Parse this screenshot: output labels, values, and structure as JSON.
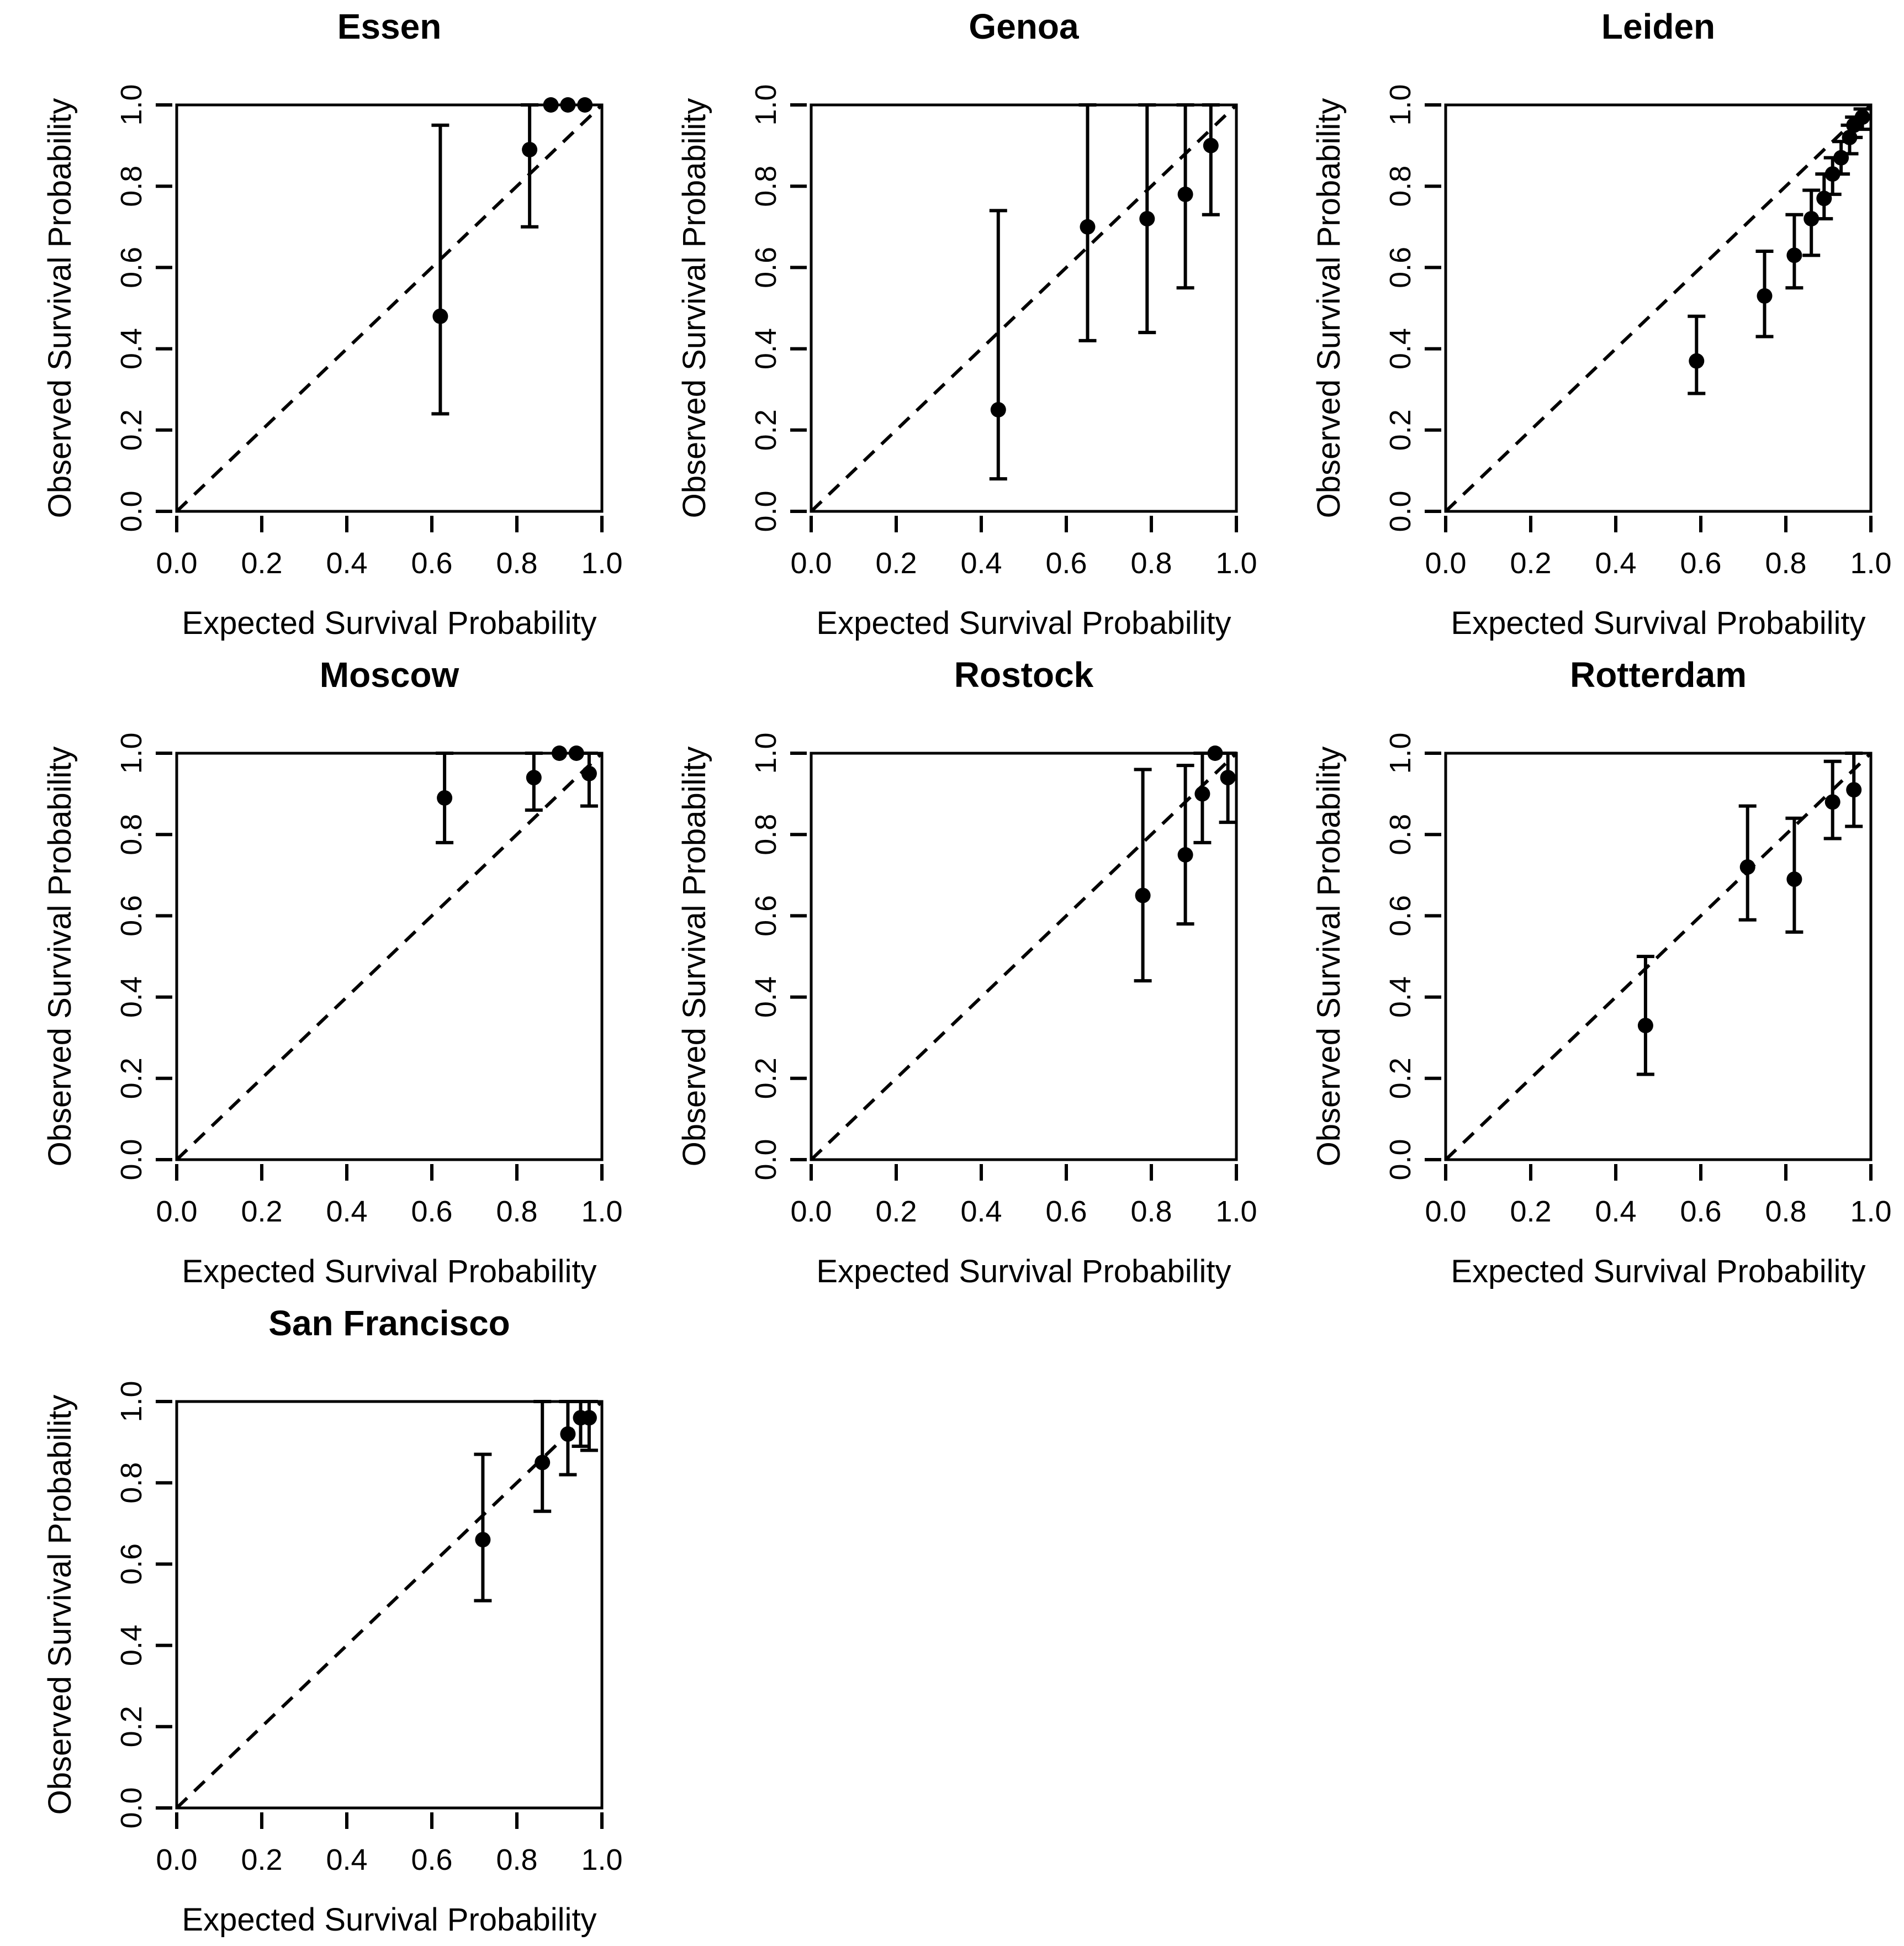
{
  "figure": {
    "xlabel": "Expected Survival Probability",
    "ylabel": "Observed Survival Probability",
    "description": "Calibration plots of expected vs observed survival probability per city cohort"
  },
  "axis": {
    "tick_labels": [
      "0.0",
      "0.2",
      "0.4",
      "0.6",
      "0.8",
      "1.0"
    ],
    "tick_values": [
      0,
      0.2,
      0.4,
      0.6,
      0.8,
      1.0
    ],
    "xlim": [
      0,
      1
    ],
    "ylim": [
      0,
      1
    ]
  },
  "colors": {
    "foreground": "#000000",
    "background": "#ffffff"
  },
  "chart_data": [
    {
      "type": "scatter",
      "title": "Essen",
      "xlabel": "Expected Survival Probability",
      "ylabel": "Observed Survival Probability",
      "xlim": [
        0,
        1
      ],
      "ylim": [
        0,
        1
      ],
      "diagonal": true,
      "grid": false,
      "points": [
        {
          "x": 0.62,
          "y": 0.48,
          "ci": [
            0.24,
            0.95
          ]
        },
        {
          "x": 0.83,
          "y": 0.89,
          "ci": [
            0.7,
            1.0
          ]
        },
        {
          "x": 0.88,
          "y": 1.0,
          "ci": null
        },
        {
          "x": 0.92,
          "y": 1.0,
          "ci": null
        },
        {
          "x": 0.96,
          "y": 1.0,
          "ci": null
        }
      ]
    },
    {
      "type": "scatter",
      "title": "Genoa",
      "xlabel": "Expected Survival Probability",
      "ylabel": "Observed Survival Probability",
      "xlim": [
        0,
        1
      ],
      "ylim": [
        0,
        1
      ],
      "diagonal": true,
      "grid": false,
      "points": [
        {
          "x": 0.44,
          "y": 0.25,
          "ci": [
            0.08,
            0.74
          ]
        },
        {
          "x": 0.65,
          "y": 0.7,
          "ci": [
            0.42,
            1.0
          ]
        },
        {
          "x": 0.79,
          "y": 0.72,
          "ci": [
            0.44,
            1.0
          ]
        },
        {
          "x": 0.88,
          "y": 0.78,
          "ci": [
            0.55,
            1.0
          ]
        },
        {
          "x": 0.94,
          "y": 0.9,
          "ci": [
            0.73,
            1.0
          ]
        }
      ]
    },
    {
      "type": "scatter",
      "title": "Leiden",
      "xlabel": "Expected Survival Probability",
      "ylabel": "Observed Survival Probability",
      "xlim": [
        0,
        1
      ],
      "ylim": [
        0,
        1
      ],
      "diagonal": true,
      "grid": false,
      "points": [
        {
          "x": 0.59,
          "y": 0.37,
          "ci": [
            0.29,
            0.48
          ]
        },
        {
          "x": 0.75,
          "y": 0.53,
          "ci": [
            0.43,
            0.64
          ]
        },
        {
          "x": 0.82,
          "y": 0.63,
          "ci": [
            0.55,
            0.73
          ]
        },
        {
          "x": 0.86,
          "y": 0.72,
          "ci": [
            0.63,
            0.79
          ]
        },
        {
          "x": 0.89,
          "y": 0.77,
          "ci": [
            0.72,
            0.83
          ]
        },
        {
          "x": 0.91,
          "y": 0.83,
          "ci": [
            0.78,
            0.87
          ]
        },
        {
          "x": 0.93,
          "y": 0.87,
          "ci": [
            0.83,
            0.91
          ]
        },
        {
          "x": 0.95,
          "y": 0.92,
          "ci": [
            0.88,
            0.95
          ]
        },
        {
          "x": 0.96,
          "y": 0.95,
          "ci": [
            0.92,
            0.97
          ]
        },
        {
          "x": 0.98,
          "y": 0.97,
          "ci": [
            0.94,
            0.99
          ]
        }
      ]
    },
    {
      "type": "scatter",
      "title": "Moscow",
      "xlabel": "Expected Survival Probability",
      "ylabel": "Observed Survival Probability",
      "xlim": [
        0,
        1
      ],
      "ylim": [
        0,
        1
      ],
      "diagonal": true,
      "grid": false,
      "points": [
        {
          "x": 0.63,
          "y": 0.89,
          "ci": [
            0.78,
            1.0
          ]
        },
        {
          "x": 0.84,
          "y": 0.94,
          "ci": [
            0.86,
            1.0
          ]
        },
        {
          "x": 0.9,
          "y": 1.0,
          "ci": null
        },
        {
          "x": 0.94,
          "y": 1.0,
          "ci": null
        },
        {
          "x": 0.97,
          "y": 0.95,
          "ci": [
            0.87,
            1.0
          ]
        }
      ]
    },
    {
      "type": "scatter",
      "title": "Rostock",
      "xlabel": "Expected Survival Probability",
      "ylabel": "Observed Survival Probability",
      "xlim": [
        0,
        1
      ],
      "ylim": [
        0,
        1
      ],
      "diagonal": true,
      "grid": false,
      "points": [
        {
          "x": 0.78,
          "y": 0.65,
          "ci": [
            0.44,
            0.96
          ]
        },
        {
          "x": 0.88,
          "y": 0.75,
          "ci": [
            0.58,
            0.97
          ]
        },
        {
          "x": 0.92,
          "y": 0.9,
          "ci": [
            0.78,
            1.0
          ]
        },
        {
          "x": 0.95,
          "y": 1.0,
          "ci": null
        },
        {
          "x": 0.98,
          "y": 0.94,
          "ci": [
            0.83,
            1.0
          ]
        }
      ]
    },
    {
      "type": "scatter",
      "title": "Rotterdam",
      "xlabel": "Expected Survival Probability",
      "ylabel": "Observed Survival Probability",
      "xlim": [
        0,
        1
      ],
      "ylim": [
        0,
        1
      ],
      "diagonal": true,
      "grid": false,
      "points": [
        {
          "x": 0.47,
          "y": 0.33,
          "ci": [
            0.21,
            0.5
          ]
        },
        {
          "x": 0.71,
          "y": 0.72,
          "ci": [
            0.59,
            0.87
          ]
        },
        {
          "x": 0.82,
          "y": 0.69,
          "ci": [
            0.56,
            0.84
          ]
        },
        {
          "x": 0.91,
          "y": 0.88,
          "ci": [
            0.79,
            0.98
          ]
        },
        {
          "x": 0.96,
          "y": 0.91,
          "ci": [
            0.82,
            1.0
          ]
        }
      ]
    },
    {
      "type": "scatter",
      "title": "San Francisco",
      "xlabel": "Expected Survival Probability",
      "ylabel": "Observed Survival Probability",
      "xlim": [
        0,
        1
      ],
      "ylim": [
        0,
        1
      ],
      "diagonal": true,
      "grid": false,
      "points": [
        {
          "x": 0.72,
          "y": 0.66,
          "ci": [
            0.51,
            0.87
          ]
        },
        {
          "x": 0.86,
          "y": 0.85,
          "ci": [
            0.73,
            1.0
          ]
        },
        {
          "x": 0.92,
          "y": 0.92,
          "ci": [
            0.82,
            1.0
          ]
        },
        {
          "x": 0.95,
          "y": 0.96,
          "ci": [
            0.89,
            1.0
          ]
        },
        {
          "x": 0.97,
          "y": 0.96,
          "ci": [
            0.88,
            1.0
          ]
        }
      ]
    }
  ]
}
